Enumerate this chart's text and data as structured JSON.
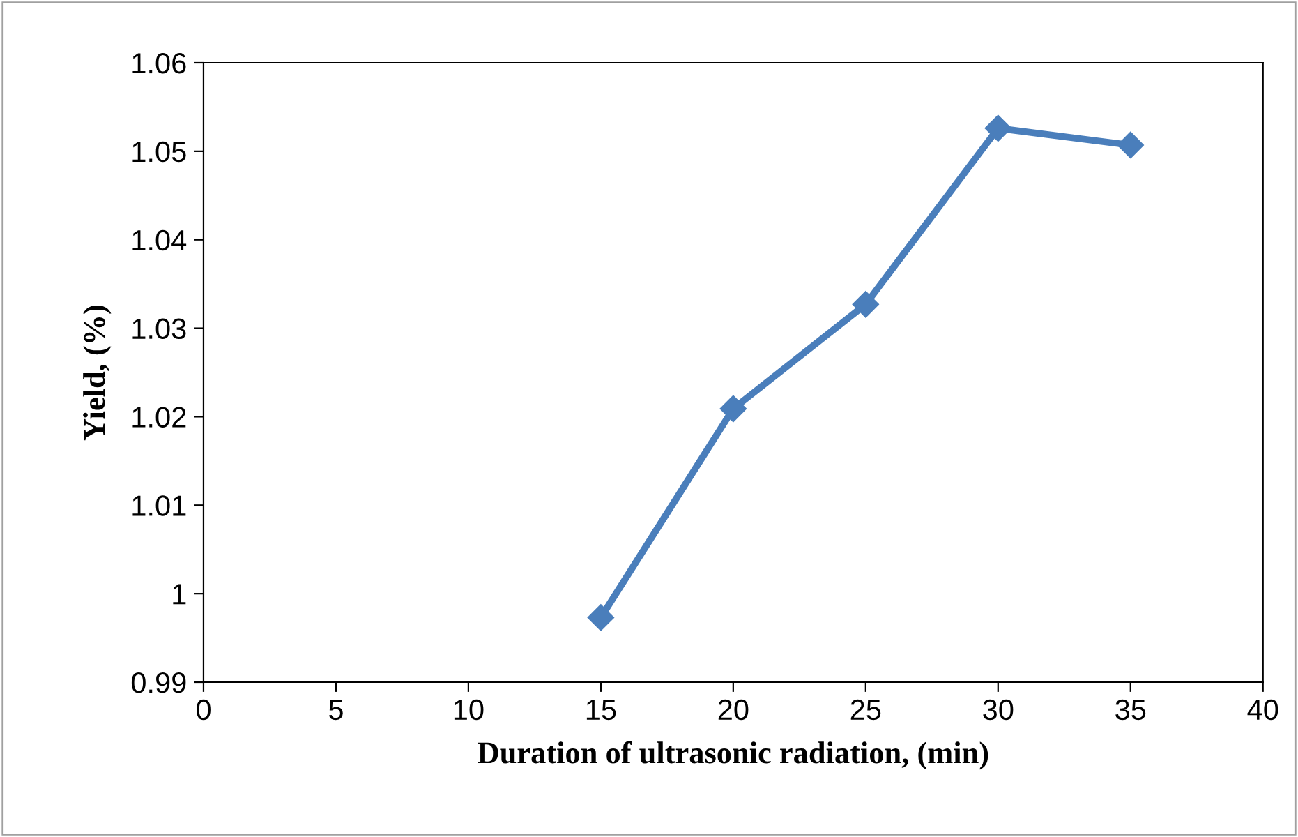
{
  "chart_data": {
    "type": "line",
    "xlabel": "Duration of ultrasonic radiation, (min)",
    "ylabel": "Yield, (%)",
    "x": [
      15,
      20,
      25,
      30,
      35
    ],
    "series": [
      {
        "color": "#4a7ebb",
        "values": [
          0.9973,
          1.0209,
          1.0327,
          1.0526,
          1.0507
        ]
      }
    ],
    "xlim": [
      0,
      40
    ],
    "xticks": [
      0,
      5,
      10,
      15,
      20,
      25,
      30,
      35,
      40
    ],
    "ylim": [
      0.99,
      1.06
    ],
    "yticks": [
      {
        "value": 0.99,
        "label": "0.99"
      },
      {
        "value": 1.0,
        "label": "1"
      },
      {
        "value": 1.01,
        "label": "1.01"
      },
      {
        "value": 1.02,
        "label": "1.02"
      },
      {
        "value": 1.03,
        "label": "1.03"
      },
      {
        "value": 1.04,
        "label": "1.04"
      },
      {
        "value": 1.05,
        "label": "1.05"
      },
      {
        "value": 1.06,
        "label": "1.06"
      }
    ],
    "grid": false,
    "legend": false,
    "marker": "diamond",
    "line_style": "solid"
  }
}
